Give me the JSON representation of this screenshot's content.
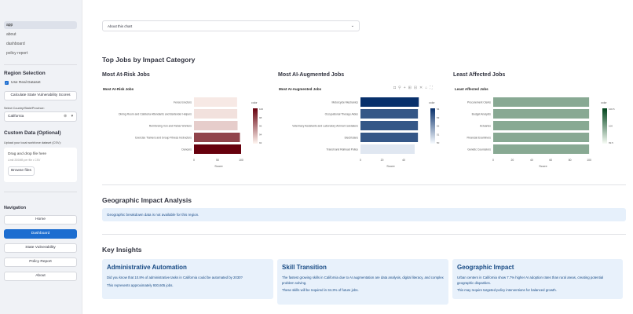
{
  "sidebar": {
    "pages": [
      "app",
      "about",
      "dashboard",
      "policy report"
    ],
    "region_heading": "Region Selection",
    "use_real_label": "Use Real Dataset",
    "use_real_checked": true,
    "calc_button": "Calculate State Vulnerability Scores",
    "select_label": "Select Country/State/Province:",
    "select_value": "California",
    "custom_heading": "Custom Data (Optional)",
    "upload_label": "Upload your local workforce dataset (CSV):",
    "drop_text": "Drag and drop file here",
    "drop_limit": "Limit 200MB per file • CSV",
    "browse_button": "Browse files",
    "nav_heading": "Navigation",
    "nav_buttons": [
      "Home",
      "Dashboard",
      "State Vulnerability",
      "Policy Report",
      "About"
    ],
    "nav_active": "Dashboard"
  },
  "main": {
    "expander": "About this chart",
    "top_jobs_heading": "Top Jobs by Impact Category",
    "geo_heading": "Geographic Impact Analysis",
    "geo_info": "Geographic breakdown data is not available for this region.",
    "insights_heading": "Key Insights",
    "cards": [
      {
        "title": "Administrative Automation",
        "lines": [
          "Did you know that 10.8% of administrative tasks in California could be automated by 2030?",
          "This represents approximately 930,605 jobs."
        ]
      },
      {
        "title": "Skill Transition",
        "lines": [
          "The fastest growing skills in California due to AI augmentation are data analysis, digital literacy, and complex problem solving.",
          "These skills will be required in 34.3% of future jobs."
        ]
      },
      {
        "title": "Geographic Impact",
        "lines": [
          "Urban centers in California show 7.7% higher AI adoption rates than rural areas, creating potential geographic disparities.",
          "This may require targeted policy interventions for balanced growth."
        ]
      }
    ]
  },
  "chart_data": [
    {
      "type": "bar",
      "orientation": "horizontal",
      "section_title": "Most At-Risk Jobs",
      "title": "Most At-Risk Jobs",
      "xlabel": "Score",
      "colorbar_title": "color",
      "colorscale": "Reds",
      "categories": [
        "Fence Erectors",
        "Dining Room and Cafeteria Attendants and Bartender Helpers",
        "Reinforcing Iron and Rebar Workers",
        "Exercise Trainers and Group Fitness Instructors",
        "Dancers"
      ],
      "values": [
        91.5,
        91.8,
        92.5,
        97.5,
        100
      ],
      "xticks": [
        "0",
        "50",
        "100"
      ],
      "xlim": [
        0,
        105
      ],
      "colorbar_ticks": [
        "100",
        "98",
        "96",
        "94",
        "92"
      ],
      "color_range": [
        91.5,
        100
      ]
    },
    {
      "type": "bar",
      "orientation": "horizontal",
      "section_title": "Most AI-Augmented Jobs",
      "title": "Most AI-Augmented Jobs",
      "xlabel": "Score",
      "colorbar_title": "color",
      "colorscale": "Blues",
      "categories": [
        "Motorcycle Mechanics",
        "Occupational Therapy Aides",
        "Veterinary Assistants and Laboratory Animal Caretakers",
        "Electricians",
        "Transit and Railroad Police"
      ],
      "values": [
        54,
        53.2,
        53.2,
        53.2,
        50.2
      ],
      "xticks": [
        "0",
        "20",
        "40"
      ],
      "xlim": [
        0,
        56
      ],
      "colorbar_ticks": [
        "54",
        "53",
        "52",
        "51",
        "50"
      ],
      "color_range": [
        50,
        54
      ]
    },
    {
      "type": "bar",
      "orientation": "horizontal",
      "section_title": "Least Affected Jobs",
      "title": "Least Affected Jobs",
      "xlabel": "Score",
      "colorbar_title": "color",
      "colorscale": "Greens",
      "categories": [
        "Procurement Clerks",
        "Budget Analysts",
        "Actuaries",
        "Financial Examiners",
        "Genetic Counselors"
      ],
      "values": [
        100,
        100,
        100,
        100,
        100
      ],
      "xticks": [
        "0",
        "20",
        "40",
        "60",
        "80",
        "100"
      ],
      "xlim": [
        0,
        104
      ],
      "colorbar_ticks": [
        "100.5",
        "100",
        "99.5"
      ],
      "color_range": [
        99.5,
        100.5
      ]
    }
  ],
  "modebar_icons": [
    "camera-icon",
    "zoom-icon",
    "pan-icon",
    "zoom-in-icon",
    "zoom-out-icon",
    "autoscale-icon",
    "reset-axes-icon",
    "fullscreen-icon"
  ]
}
